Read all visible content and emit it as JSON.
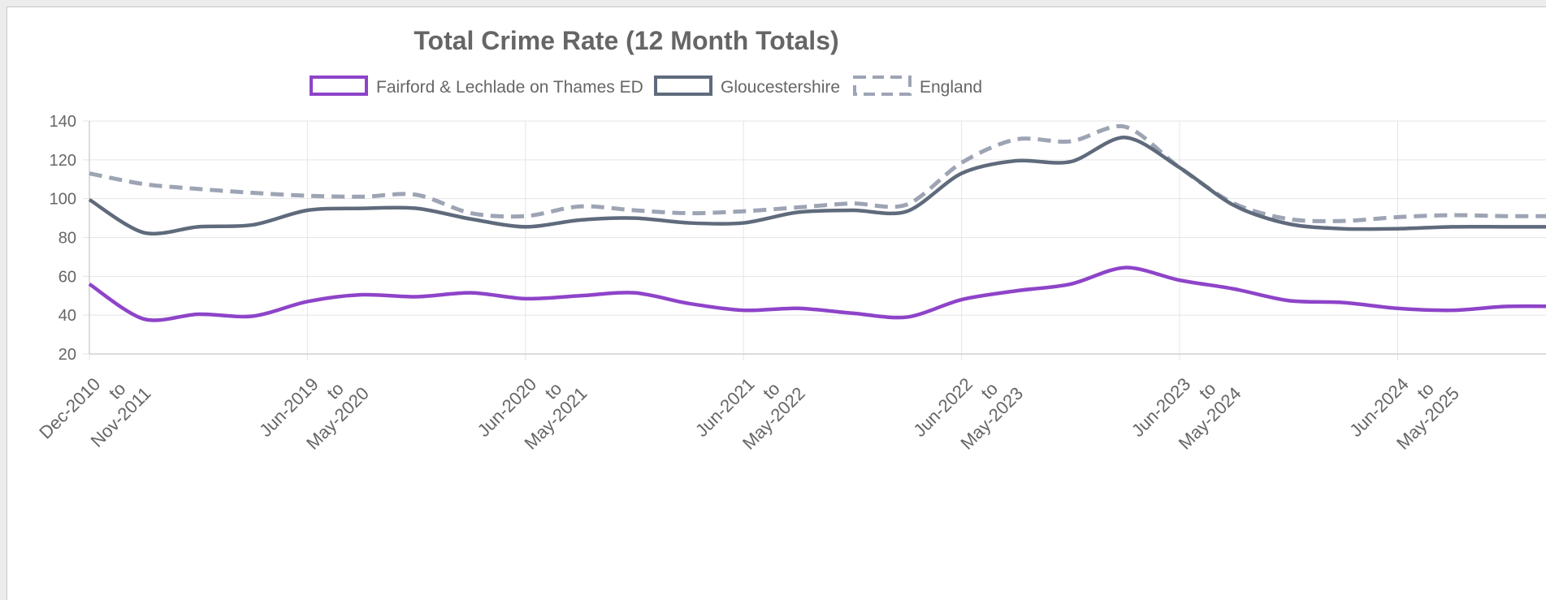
{
  "chart_data": {
    "type": "line",
    "title": "Total Crime Rate (12 Month Totals)",
    "xlabel": "",
    "ylabel": "",
    "ylim": [
      20,
      140
    ],
    "yticks": [
      20,
      40,
      60,
      80,
      100,
      120,
      140
    ],
    "grid": true,
    "legend_position": "top",
    "x_tick_labels": [
      [
        "Dec-2010",
        "to",
        "Nov-2011"
      ],
      [
        "Jun-2019",
        "to",
        "May-2020"
      ],
      [
        "Jun-2020",
        "to",
        "May-2021"
      ],
      [
        "Jun-2021",
        "to",
        "May-2022"
      ],
      [
        "Jun-2022",
        "to",
        "May-2023"
      ],
      [
        "Jun-2023",
        "to",
        "May-2024"
      ],
      [
        "Jun-2024",
        "to",
        "May-2025"
      ]
    ],
    "series": [
      {
        "name": "Fairford & Lechlade on Thames ED",
        "color": "#8e44c9",
        "style": "solid",
        "values": [
          56,
          38,
          40.5,
          39.5,
          47,
          50.5,
          49.5,
          51.5,
          48.5,
          50,
          51.5,
          46,
          42.5,
          43.5,
          41,
          39,
          48,
          52.5,
          56,
          64.5,
          58,
          53.5,
          47.5,
          46.5,
          43.5,
          42.5,
          44.5,
          44.5
        ]
      },
      {
        "name": "Gloucestershire",
        "color": "#5f6b7c",
        "style": "solid",
        "values": [
          99.5,
          82.5,
          85.5,
          86.5,
          94,
          95,
          95,
          89.5,
          85.5,
          89,
          90,
          87.5,
          87.5,
          93,
          94,
          93.5,
          113,
          119.5,
          119,
          131.5,
          116,
          96.5,
          87,
          84.5,
          84.5,
          85.5,
          85.5,
          85.5
        ]
      },
      {
        "name": "England",
        "color": "#9da4b4",
        "style": "dashed",
        "values": [
          113,
          107.5,
          105,
          103,
          101.5,
          101,
          102,
          92.5,
          91,
          96,
          94,
          92.5,
          93.5,
          95.5,
          97.5,
          97,
          118.5,
          130.5,
          129.5,
          137,
          116,
          97.5,
          89.5,
          88.5,
          90.5,
          91.5,
          91,
          91
        ]
      }
    ]
  }
}
